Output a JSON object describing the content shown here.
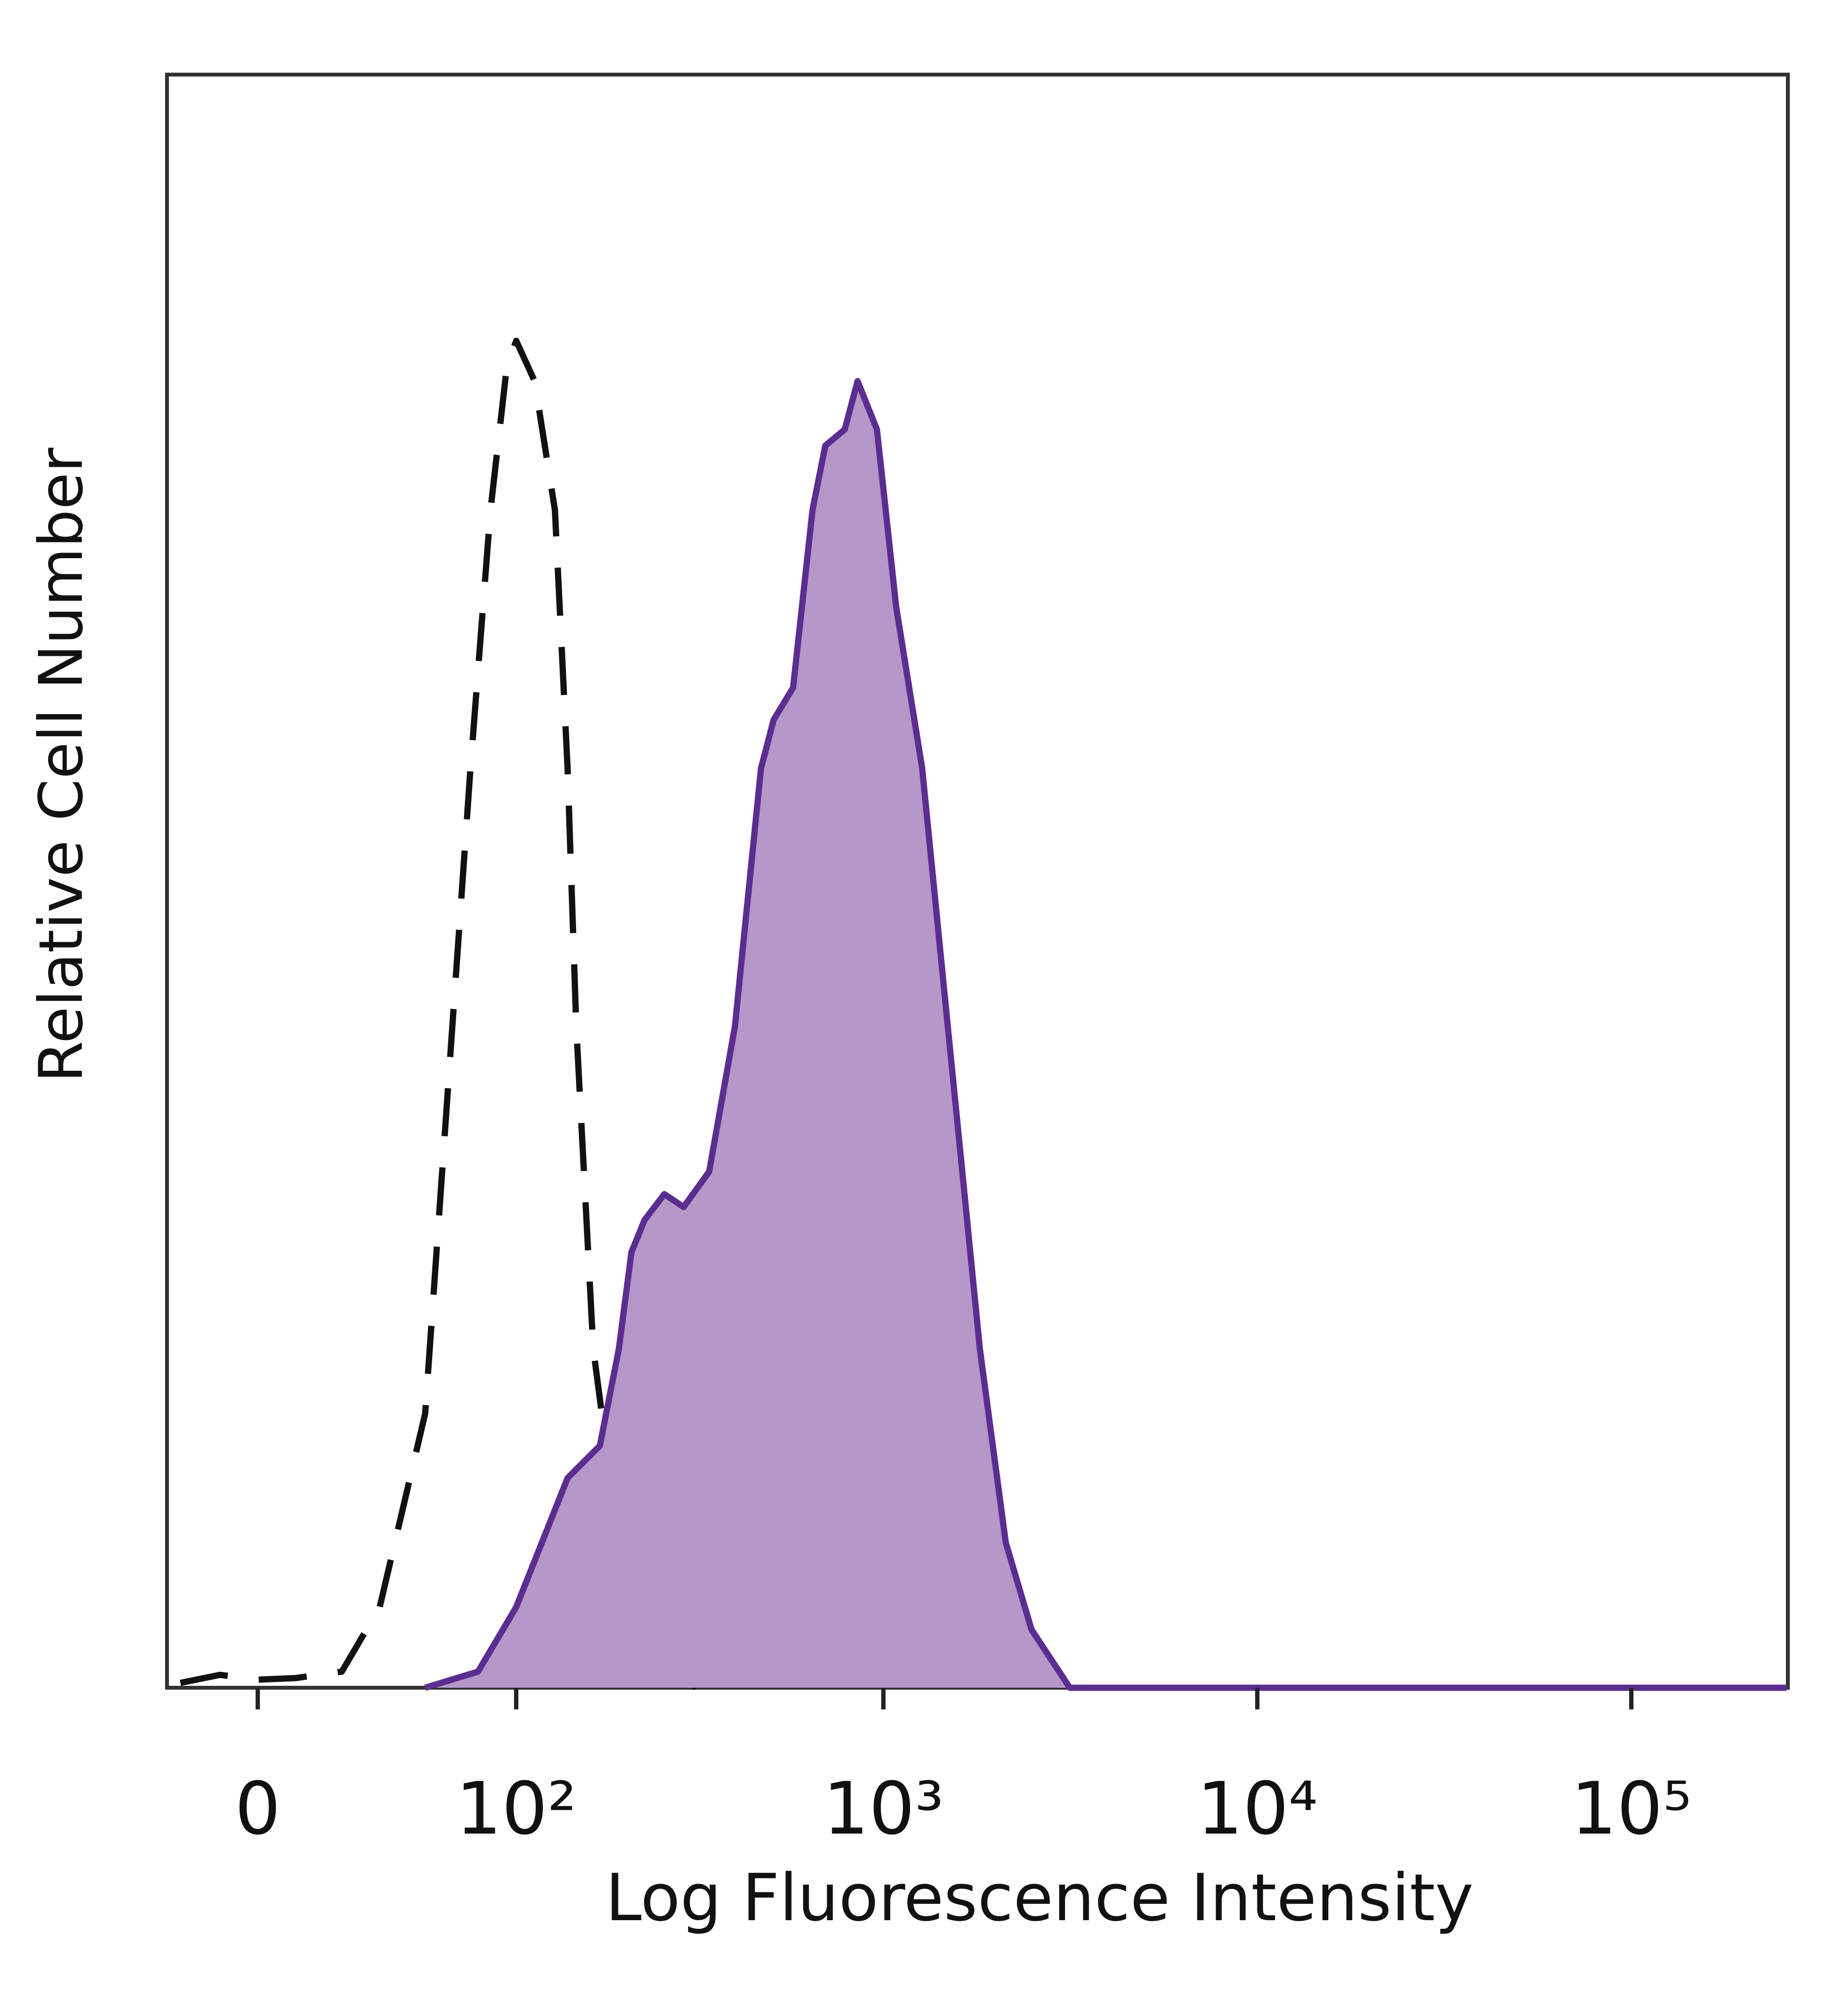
{
  "chart_data": {
    "type": "histogram-overlay",
    "xlabel": "Log Fluorescence Intensity",
    "ylabel": "Relative Cell Number",
    "xscale": "biexponential",
    "xlim": [
      -25,
      262144
    ],
    "ylim": [
      0,
      100
    ],
    "xticks": [
      0,
      {
        "value": 100,
        "label": "10²"
      },
      {
        "value": 1000,
        "label": "10³"
      },
      {
        "value": 10000,
        "label": "10⁴"
      },
      {
        "value": 100000,
        "label": "10⁵"
      }
    ],
    "series": [
      {
        "color": "#111111",
        "line_style": "dashed",
        "fill": "none",
        "x": [
          -21,
          -10,
          0,
          10,
          23,
          35,
          52,
          64,
          73,
          84,
          94,
          100,
          113,
          129,
          140,
          148,
          165,
          194,
          247,
          315
        ],
        "values": [
          0.3,
          0.8,
          0.5,
          0.6,
          1,
          5,
          17,
          41,
          57,
          73,
          82,
          83.5,
          81,
          73,
          57,
          41,
          21,
          9,
          2,
          0
        ]
      },
      {
        "color": "#5b2d91",
        "line_style": "solid",
        "fill": "#b398c8",
        "x": [
          52,
          77,
          100,
          140,
          172,
          194,
          210,
          228,
          258,
          291,
          341,
          400,
          470,
          508,
          573,
          646,
          699,
          788,
          853,
          961,
          1082,
          1270,
          1374,
          1487,
          1610,
          1812,
          2125,
          2491,
          3153,
          260000
        ],
        "values": [
          0,
          1,
          5,
          13,
          15,
          21,
          27,
          29,
          30.6,
          29.8,
          32,
          41,
          57,
          60,
          62,
          73,
          77,
          78,
          81,
          78,
          67,
          57,
          49,
          41,
          33,
          21,
          9,
          3.6,
          0,
          0
        ]
      }
    ]
  }
}
